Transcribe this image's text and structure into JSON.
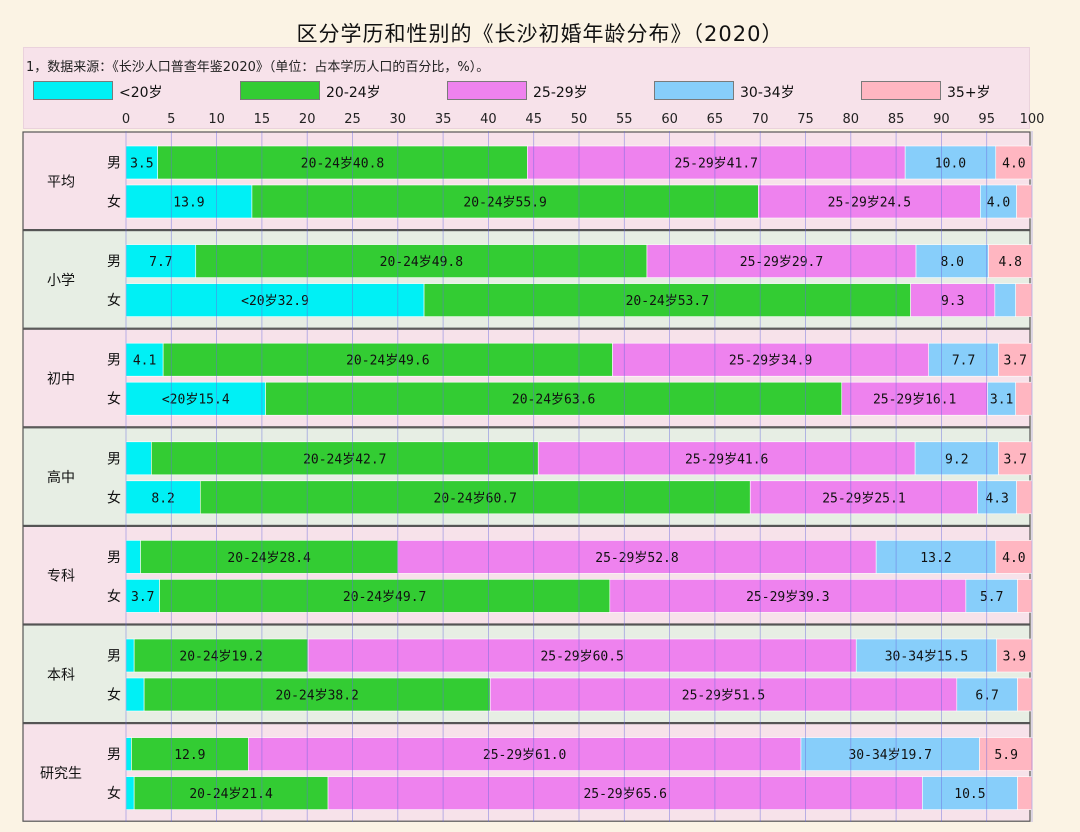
{
  "chart_data": {
    "type": "bar",
    "orientation": "horizontal",
    "stacked": true,
    "title": "区分学历和性别的《长沙初婚年龄分布》（2020）",
    "subtitle": "1，数据来源：《长沙人口普查年鉴2020》（单位：占本学历人口的百分比，%）。",
    "xlim": [
      0,
      100
    ],
    "x_ticks": [
      0,
      5,
      10,
      15,
      20,
      25,
      30,
      35,
      40,
      45,
      50,
      55,
      60,
      65,
      70,
      75,
      80,
      85,
      90,
      95,
      100
    ],
    "grid": true,
    "legend_position": "top",
    "series": [
      {
        "name": "<20岁",
        "color": "#00f0f5"
      },
      {
        "name": "20-24岁",
        "color": "#33cc33"
      },
      {
        "name": "25-29岁",
        "color": "#ee82ee"
      },
      {
        "name": "30-34岁",
        "color": "#87cefa"
      },
      {
        "name": "35+岁",
        "color": "#ffb6c1"
      }
    ],
    "groups": [
      {
        "name": "平均",
        "rows": [
          {
            "sex": "男",
            "values": [
              3.5,
              40.8,
              41.7,
              10.0,
              4.0
            ],
            "labels": [
              "3.5",
              "20-24岁40.8",
              "25-29岁41.7",
              "10.0",
              "4.0"
            ]
          },
          {
            "sex": "女",
            "values": [
              13.9,
              55.9,
              24.5,
              4.0,
              1.7
            ],
            "labels": [
              "13.9",
              "20-24岁55.9",
              "25-29岁24.5",
              "4.0",
              ""
            ]
          }
        ]
      },
      {
        "name": "小学",
        "rows": [
          {
            "sex": "男",
            "values": [
              7.7,
              49.8,
              29.7,
              8.0,
              4.8
            ],
            "labels": [
              "7.7",
              "20-24岁49.8",
              "25-29岁29.7",
              "8.0",
              "4.8"
            ]
          },
          {
            "sex": "女",
            "values": [
              32.9,
              53.7,
              9.3,
              2.3,
              1.8
            ],
            "labels": [
              "<20岁32.9",
              "20-24岁53.7",
              "9.3",
              "",
              ""
            ]
          }
        ]
      },
      {
        "name": "初中",
        "rows": [
          {
            "sex": "男",
            "values": [
              4.1,
              49.6,
              34.9,
              7.7,
              3.7
            ],
            "labels": [
              "4.1",
              "20-24岁49.6",
              "25-29岁34.9",
              "7.7",
              "3.7"
            ]
          },
          {
            "sex": "女",
            "values": [
              15.4,
              63.6,
              16.1,
              3.1,
              1.8
            ],
            "labels": [
              "<20岁15.4",
              "20-24岁63.6",
              "25-29岁16.1",
              "3.1",
              ""
            ]
          }
        ]
      },
      {
        "name": "高中",
        "rows": [
          {
            "sex": "男",
            "values": [
              2.8,
              42.7,
              41.6,
              9.2,
              3.7
            ],
            "labels": [
              "",
              "20-24岁42.7",
              "25-29岁41.6",
              "9.2",
              "3.7"
            ]
          },
          {
            "sex": "女",
            "values": [
              8.2,
              60.7,
              25.1,
              4.3,
              1.7
            ],
            "labels": [
              "8.2",
              "20-24岁60.7",
              "25-29岁25.1",
              "4.3",
              ""
            ]
          }
        ]
      },
      {
        "name": "专科",
        "rows": [
          {
            "sex": "男",
            "values": [
              1.6,
              28.4,
              52.8,
              13.2,
              4.0
            ],
            "labels": [
              "",
              "20-24岁28.4",
              "25-29岁52.8",
              "13.2",
              "4.0"
            ]
          },
          {
            "sex": "女",
            "values": [
              3.7,
              49.7,
              39.3,
              5.7,
              1.6
            ],
            "labels": [
              "3.7",
              "20-24岁49.7",
              "25-29岁39.3",
              "5.7",
              ""
            ]
          }
        ]
      },
      {
        "name": "本科",
        "rows": [
          {
            "sex": "男",
            "values": [
              0.9,
              19.2,
              60.5,
              15.5,
              3.9
            ],
            "labels": [
              "",
              "20-24岁19.2",
              "25-29岁60.5",
              "30-34岁15.5",
              "3.9"
            ]
          },
          {
            "sex": "女",
            "values": [
              2.0,
              38.2,
              51.5,
              6.7,
              1.6
            ],
            "labels": [
              "",
              "20-24岁38.2",
              "25-29岁51.5",
              "6.7",
              ""
            ]
          }
        ]
      },
      {
        "name": "研究生",
        "rows": [
          {
            "sex": "男",
            "values": [
              0.6,
              12.9,
              61.0,
              19.7,
              5.9
            ],
            "labels": [
              "",
              "12.9",
              "25-29岁61.0",
              "30-34岁19.7",
              "5.9"
            ]
          },
          {
            "sex": "女",
            "values": [
              0.9,
              21.4,
              65.6,
              10.5,
              1.6
            ],
            "labels": [
              "",
              "20-24岁21.4",
              "25-29岁65.6",
              "10.5",
              ""
            ]
          }
        ]
      }
    ]
  }
}
